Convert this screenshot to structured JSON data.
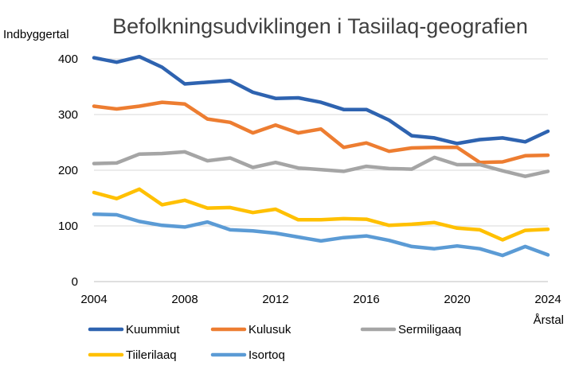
{
  "chart_data": {
    "type": "line",
    "title": "Befolkningsudviklingen i Tasiilaq-geografien",
    "ylabel": "Indbyggertal",
    "xlabel": "Årstal",
    "ylim": [
      0,
      400
    ],
    "y_ticks": [
      0,
      100,
      200,
      300,
      400
    ],
    "y_tick_labels": [
      "0",
      "100",
      "200",
      "300",
      "400"
    ],
    "xlim": [
      2004,
      2024
    ],
    "x_ticks": [
      2004,
      2008,
      2012,
      2016,
      2020,
      2024
    ],
    "x_tick_labels": [
      "2004",
      "2008",
      "2012",
      "2016",
      "2020",
      "2024"
    ],
    "grid": "horizontal",
    "legend_position": "bottom",
    "x": [
      2004,
      2005,
      2006,
      2007,
      2008,
      2009,
      2010,
      2011,
      2012,
      2013,
      2014,
      2015,
      2016,
      2017,
      2018,
      2019,
      2020,
      2021,
      2022,
      2023,
      2024
    ],
    "series": [
      {
        "name": "Kuummiut",
        "color": "#2E63B0",
        "values": [
          402,
          394,
          404,
          385,
          355,
          358,
          361,
          340,
          329,
          330,
          322,
          309,
          309,
          290,
          262,
          258,
          248,
          255,
          258,
          251,
          270
        ]
      },
      {
        "name": "Kulusuk",
        "color": "#ED7D31",
        "values": [
          315,
          310,
          315,
          322,
          319,
          292,
          286,
          267,
          281,
          267,
          274,
          241,
          249,
          234,
          240,
          241,
          241,
          214,
          215,
          226,
          227
        ]
      },
      {
        "name": "Sermiligaaq",
        "color": "#A5A5A5",
        "values": [
          212,
          213,
          229,
          230,
          233,
          217,
          222,
          205,
          214,
          204,
          201,
          198,
          207,
          203,
          202,
          223,
          210,
          210,
          199,
          189,
          198
        ]
      },
      {
        "name": "Tiilerilaaq",
        "color": "#FFC000",
        "values": [
          160,
          149,
          166,
          138,
          146,
          132,
          133,
          124,
          130,
          111,
          111,
          113,
          112,
          101,
          103,
          106,
          96,
          93,
          75,
          92,
          94
        ]
      },
      {
        "name": "Isortoq",
        "color": "#5B9BD5",
        "values": [
          121,
          120,
          108,
          101,
          98,
          107,
          93,
          91,
          87,
          80,
          73,
          79,
          82,
          74,
          63,
          59,
          64,
          59,
          47,
          63,
          48
        ]
      }
    ]
  }
}
